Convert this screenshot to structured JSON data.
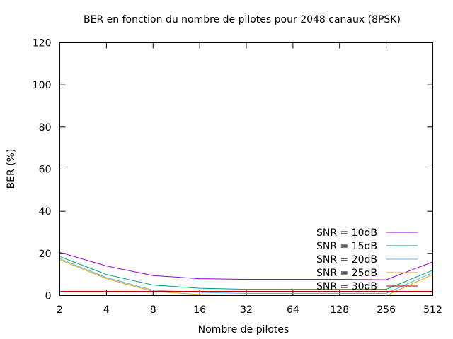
{
  "chart_data": {
    "type": "line",
    "title": "BER en fonction du nombre de pilotes pour 2048 canaux (8PSK)",
    "xlabel": "Nombre de pilotes",
    "ylabel": "BER (%)",
    "x_scale": "log2",
    "x": [
      2,
      4,
      8,
      16,
      32,
      64,
      128,
      256,
      512
    ],
    "x_tick_labels": [
      "2",
      "4",
      "8",
      "16",
      "32",
      "64",
      "128",
      "256",
      "512"
    ],
    "ylim": [
      0,
      120
    ],
    "y_ticks": [
      0,
      20,
      40,
      60,
      80,
      100,
      120
    ],
    "y_tick_labels": [
      "0",
      "20",
      "40",
      "60",
      "80",
      "100",
      "120"
    ],
    "grid": false,
    "legend_position": "bottom-right",
    "series": [
      {
        "name": "SNR = 10dB",
        "color": "#9400d3",
        "values": [
          20.5,
          14,
          9.5,
          8,
          7.7,
          7.7,
          7.7,
          7.5,
          16
        ]
      },
      {
        "name": "SNR = 15dB",
        "color": "#009e73",
        "values": [
          18.5,
          10,
          5,
          3.5,
          3,
          3,
          3,
          3,
          12
        ]
      },
      {
        "name": "SNR = 20dB",
        "color": "#56b4e9",
        "values": [
          17.5,
          8.5,
          2.5,
          1.5,
          1,
          1,
          1,
          1,
          11
        ]
      },
      {
        "name": "SNR = 25dB",
        "color": "#e69f00",
        "values": [
          17,
          8,
          2,
          0.5,
          0,
          0,
          0,
          0,
          10
        ]
      },
      {
        "name": "SNR = 30dB",
        "color": "#c00000",
        "values": [
          2,
          2,
          2,
          2,
          2,
          2,
          2,
          2,
          2
        ]
      }
    ]
  }
}
